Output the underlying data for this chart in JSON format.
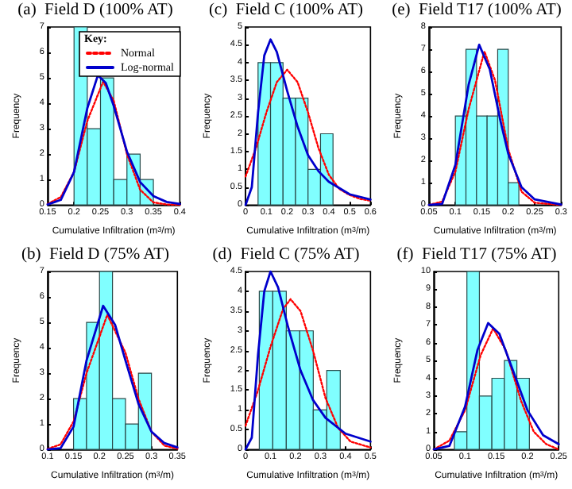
{
  "chart_data": [
    {
      "type": "histogram",
      "title": "(a)  Field D (100% AT)",
      "xlabel": "Cumulative Infiltration (m$^{3}$/m)",
      "ylabel": "Frequency",
      "xlim": [
        0.15,
        0.4
      ],
      "xticks": [
        0.15,
        0.2,
        0.25,
        0.3,
        0.35,
        0.4
      ],
      "ylim": [
        0,
        7
      ],
      "yticks": [
        0,
        1,
        2,
        3,
        4,
        5,
        6,
        7
      ],
      "legend": "top right",
      "legend_title": "Key:",
      "series": [
        {
          "color": "#80ffff",
          "bins": [
            0.2,
            0.225,
            0.25,
            0.275,
            0.3,
            0.325,
            0.35
          ],
          "values": [
            7,
            3,
            5,
            1,
            2,
            1
          ]
        },
        {
          "type": "line",
          "name": "Normal",
          "color": "#ff0000",
          "line_style": "dotted",
          "x": [
            0.15,
            0.175,
            0.2,
            0.225,
            0.255,
            0.275,
            0.3,
            0.325,
            0.35,
            0.375,
            0.4
          ],
          "values": [
            0.04,
            0.31,
            1.3,
            3.3,
            4.85,
            4.1,
            2.0,
            0.6,
            0.1,
            0.02,
            0
          ]
        },
        {
          "type": "line",
          "name": "Log-normal",
          "color": "#0000cc",
          "line_style": "solid",
          "x": [
            0.15,
            0.175,
            0.2,
            0.225,
            0.245,
            0.26,
            0.275,
            0.3,
            0.325,
            0.35,
            0.375,
            0.4
          ],
          "values": [
            0.02,
            0.2,
            1.3,
            3.8,
            5.1,
            4.8,
            3.9,
            2.1,
            0.9,
            0.35,
            0.12,
            0.04
          ]
        }
      ]
    },
    {
      "type": "histogram",
      "title": "(c)  Field C (100% AT)",
      "xlabel": "Cumulative Infiltration (m$^{3}$/m)",
      "ylabel": "Frequency",
      "xlim": [
        0,
        0.6
      ],
      "xticks": [
        0,
        0.1,
        0.2,
        0.3,
        0.4,
        0.5,
        0.6
      ],
      "ylim": [
        0,
        5
      ],
      "yticks": [
        0,
        0.5,
        1,
        1.5,
        2,
        2.5,
        3,
        3.5,
        4,
        4.5,
        5
      ],
      "series": [
        {
          "color": "#80ffff",
          "bins": [
            0.06,
            0.12,
            0.18,
            0.24,
            0.3,
            0.36,
            0.42
          ],
          "values": [
            4,
            4,
            3,
            3,
            1,
            2
          ]
        },
        {
          "type": "line",
          "color": "#ff0000",
          "line_style": "dotted",
          "x": [
            0,
            0.05,
            0.1,
            0.15,
            0.2,
            0.25,
            0.3,
            0.35,
            0.4,
            0.45,
            0.5,
            0.55,
            0.6
          ],
          "values": [
            0.8,
            1.6,
            2.6,
            3.45,
            3.8,
            3.45,
            2.6,
            1.6,
            0.85,
            0.45,
            0.28,
            0.17,
            0.12
          ]
        },
        {
          "type": "line",
          "color": "#0000cc",
          "line_style": "solid",
          "x": [
            0,
            0.03,
            0.06,
            0.09,
            0.12,
            0.15,
            0.2,
            0.25,
            0.3,
            0.35,
            0.4,
            0.5,
            0.6
          ],
          "values": [
            0,
            0.5,
            2.6,
            4.2,
            4.65,
            4.3,
            3.2,
            2.2,
            1.4,
            0.95,
            0.65,
            0.3,
            0.15
          ]
        }
      ]
    },
    {
      "type": "histogram",
      "title": "(e)  Field T17 (100% AT)",
      "xlabel": "Cumulative Infiltration (m$^{3}$/m)",
      "ylabel": "Frequency",
      "xlim": [
        0.05,
        0.3
      ],
      "xticks": [
        0.05,
        0.1,
        0.15,
        0.2,
        0.25,
        0.3
      ],
      "ylim": [
        0,
        8
      ],
      "yticks": [
        0,
        1,
        2,
        3,
        4,
        5,
        6,
        7,
        8
      ],
      "series": [
        {
          "color": "#80ffff",
          "bins": [
            0.1,
            0.12,
            0.14,
            0.16,
            0.18,
            0.2,
            0.22
          ],
          "values": [
            4,
            7,
            4,
            4,
            7,
            1
          ]
        },
        {
          "type": "line",
          "color": "#ff0000",
          "line_style": "dotted",
          "x": [
            0.05,
            0.075,
            0.1,
            0.125,
            0.155,
            0.175,
            0.2,
            0.225,
            0.25,
            0.3
          ],
          "values": [
            0,
            0.15,
            1.5,
            4.3,
            6.9,
            5.6,
            2.5,
            0.6,
            0.1,
            0
          ]
        },
        {
          "type": "line",
          "color": "#0000cc",
          "line_style": "solid",
          "x": [
            0.05,
            0.075,
            0.1,
            0.125,
            0.145,
            0.165,
            0.185,
            0.2,
            0.225,
            0.25,
            0.3
          ],
          "values": [
            0,
            0.05,
            1.8,
            5.4,
            7.2,
            6.1,
            3.8,
            2.3,
            0.8,
            0.25,
            0.02
          ]
        }
      ]
    },
    {
      "type": "histogram",
      "title": "(b)  Field D (75% AT)",
      "xlabel": "Cumulative Infiltration (m$^{3}$/m)",
      "ylabel": "Frequency",
      "xlim": [
        0.1,
        0.35
      ],
      "xticks": [
        0.1,
        0.15,
        0.2,
        0.25,
        0.3,
        0.35
      ],
      "ylim": [
        0,
        7
      ],
      "yticks": [
        0,
        1,
        2,
        3,
        4,
        5,
        6,
        7
      ],
      "series": [
        {
          "color": "#80ffff",
          "bins": [
            0.15,
            0.175,
            0.2,
            0.225,
            0.25,
            0.275,
            0.3
          ],
          "values": [
            2,
            5,
            7,
            2,
            1,
            3
          ]
        },
        {
          "type": "line",
          "color": "#ff0000",
          "line_style": "dotted",
          "x": [
            0.1,
            0.125,
            0.15,
            0.175,
            0.215,
            0.25,
            0.275,
            0.3,
            0.325,
            0.35
          ],
          "values": [
            0.02,
            0.2,
            1.1,
            3.0,
            5.3,
            3.8,
            2.0,
            0.7,
            0.15,
            0.03
          ]
        },
        {
          "type": "line",
          "color": "#0000cc",
          "line_style": "solid",
          "x": [
            0.1,
            0.125,
            0.15,
            0.175,
            0.207,
            0.23,
            0.25,
            0.275,
            0.3,
            0.325,
            0.35
          ],
          "values": [
            0,
            0.05,
            0.9,
            3.5,
            5.65,
            4.9,
            3.5,
            1.8,
            0.7,
            0.25,
            0.08
          ]
        }
      ]
    },
    {
      "type": "histogram",
      "title": "(d)  Field C (75% AT)",
      "xlabel": "Cumulative Infiltration (m$^{3}$/m)",
      "ylabel": "Frequency",
      "xlim": [
        0,
        0.5
      ],
      "xticks": [
        0,
        0.1,
        0.2,
        0.3,
        0.4,
        0.5
      ],
      "ylim": [
        0,
        4.5
      ],
      "yticks": [
        0,
        0.5,
        1,
        1.5,
        2,
        2.5,
        3,
        3.5,
        4,
        4.5
      ],
      "series": [
        {
          "color": "#80ffff",
          "bins": [
            0.055,
            0.109,
            0.163,
            0.217,
            0.271,
            0.325,
            0.379
          ],
          "values": [
            4,
            4,
            3,
            3,
            1,
            2
          ]
        },
        {
          "type": "line",
          "color": "#ff0000",
          "line_style": "dotted",
          "x": [
            0,
            0.05,
            0.1,
            0.15,
            0.18,
            0.22,
            0.27,
            0.32,
            0.37,
            0.42,
            0.5
          ],
          "values": [
            0.6,
            1.5,
            2.6,
            3.55,
            3.8,
            3.5,
            2.5,
            1.3,
            0.55,
            0.2,
            0.05
          ]
        },
        {
          "type": "line",
          "color": "#0000cc",
          "line_style": "solid",
          "x": [
            0,
            0.025,
            0.05,
            0.075,
            0.1,
            0.13,
            0.17,
            0.22,
            0.27,
            0.32,
            0.4,
            0.5
          ],
          "values": [
            0,
            0.3,
            2.4,
            4.0,
            4.5,
            4.1,
            3.1,
            2.0,
            1.25,
            0.8,
            0.4,
            0.2
          ]
        }
      ]
    },
    {
      "type": "histogram",
      "title": "(f)  Field T17 (75% AT)",
      "xlabel": "Cumulative Infiltration (m$^{3}$/m)",
      "ylabel": "Frequency",
      "xlim": [
        0.05,
        0.25
      ],
      "xticks": [
        0.05,
        0.1,
        0.15,
        0.2,
        0.25
      ],
      "ylim": [
        0,
        10
      ],
      "yticks": [
        0,
        1,
        2,
        3,
        4,
        5,
        6,
        7,
        8,
        9,
        10
      ],
      "series": [
        {
          "color": "#80ffff",
          "bins": [
            0.083,
            0.103,
            0.123,
            0.143,
            0.163,
            0.183,
            0.203
          ],
          "values": [
            1,
            10,
            3,
            4,
            5,
            4
          ]
        },
        {
          "type": "line",
          "color": "#ff0000",
          "line_style": "dotted",
          "x": [
            0.05,
            0.075,
            0.1,
            0.125,
            0.145,
            0.165,
            0.19,
            0.21,
            0.23,
            0.25
          ],
          "values": [
            0,
            0.5,
            2.2,
            5.3,
            6.8,
            5.6,
            2.7,
            1.0,
            0.3,
            0
          ]
        },
        {
          "type": "line",
          "color": "#0000cc",
          "line_style": "solid",
          "x": [
            0.05,
            0.075,
            0.1,
            0.12,
            0.137,
            0.155,
            0.175,
            0.2,
            0.225,
            0.25
          ],
          "values": [
            0,
            0.2,
            2.4,
            5.6,
            7.1,
            6.5,
            4.6,
            2.2,
            0.8,
            0.3
          ]
        }
      ]
    }
  ]
}
